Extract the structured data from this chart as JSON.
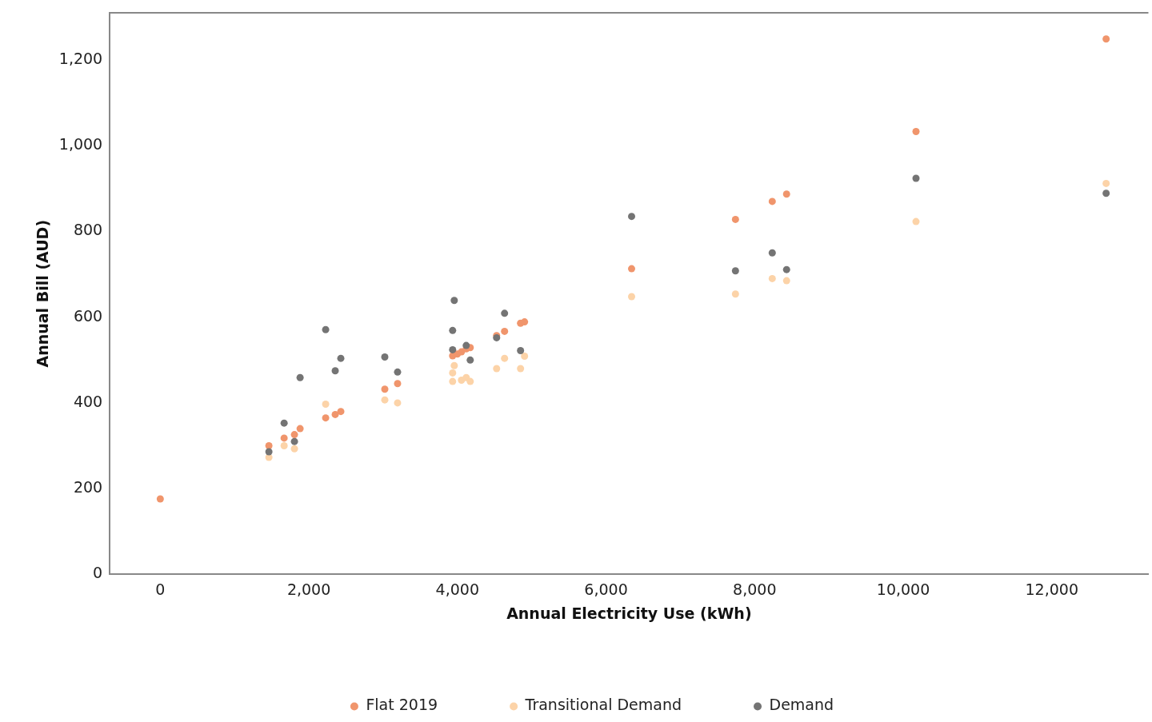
{
  "chart_data": {
    "type": "scatter",
    "xlabel": "Annual Electricity Use (kWh)",
    "ylabel": "Annual Bill (AUD)",
    "xlim": [
      -680,
      13300
    ],
    "ylim": [
      0,
      1310
    ],
    "xticks": [
      {
        "value": 0,
        "label": "0"
      },
      {
        "value": 2000,
        "label": "2,000"
      },
      {
        "value": 4000,
        "label": "4,000"
      },
      {
        "value": 6000,
        "label": "6,000"
      },
      {
        "value": 8000,
        "label": "8,000"
      },
      {
        "value": 10000,
        "label": "10,000"
      },
      {
        "value": 12000,
        "label": "12,000"
      }
    ],
    "yticks": [
      {
        "value": 0,
        "label": "0"
      },
      {
        "value": 200,
        "label": "200"
      },
      {
        "value": 400,
        "label": "400"
      },
      {
        "value": 600,
        "label": "600"
      },
      {
        "value": 800,
        "label": "800"
      },
      {
        "value": 1000,
        "label": "1,000"
      },
      {
        "value": 1200,
        "label": "1,200"
      }
    ],
    "grid": false,
    "legend": "bottom",
    "marker": "circle",
    "series": [
      {
        "name": "Flat 2019",
        "color": "#f0956c",
        "x": [
          0,
          1462,
          1667,
          1806,
          1882,
          2226,
          2355,
          2430,
          3022,
          3194,
          3935,
          3999,
          4054,
          4118,
          4172,
          4527,
          4634,
          4849,
          4903,
          6344,
          7742,
          8237,
          8430,
          10172,
          12731
        ],
        "values": [
          176,
          300,
          318,
          326,
          340,
          365,
          373,
          380,
          432,
          445,
          510,
          514,
          519,
          526,
          529,
          557,
          567,
          586,
          589,
          713,
          828,
          870,
          887,
          1033,
          1249
        ]
      },
      {
        "name": "Transitional Demand",
        "color": "#fcd3a8",
        "x": [
          1462,
          1667,
          1806,
          2226,
          3022,
          3194,
          3935,
          3957,
          3935,
          4054,
          4118,
          4172,
          4527,
          4634,
          4849,
          4903,
          6344,
          7742,
          8237,
          8430,
          10172,
          12731
        ],
        "values": [
          273,
          300,
          293,
          397,
          407,
          400,
          470,
          487,
          450,
          453,
          459,
          450,
          480,
          504,
          480,
          509,
          648,
          654,
          690,
          685,
          823,
          912
        ]
      },
      {
        "name": "Demand",
        "color": "#747474",
        "x": [
          1462,
          1667,
          1806,
          1882,
          2226,
          2355,
          2430,
          3022,
          3194,
          3935,
          3935,
          3957,
          4118,
          4172,
          4527,
          4634,
          4849,
          6344,
          7742,
          8237,
          8430,
          10172,
          12731
        ],
        "values": [
          286,
          353,
          310,
          459,
          571,
          475,
          504,
          507,
          472,
          524,
          569,
          639,
          534,
          500,
          552,
          609,
          522,
          835,
          708,
          750,
          711,
          924,
          889
        ]
      }
    ]
  }
}
